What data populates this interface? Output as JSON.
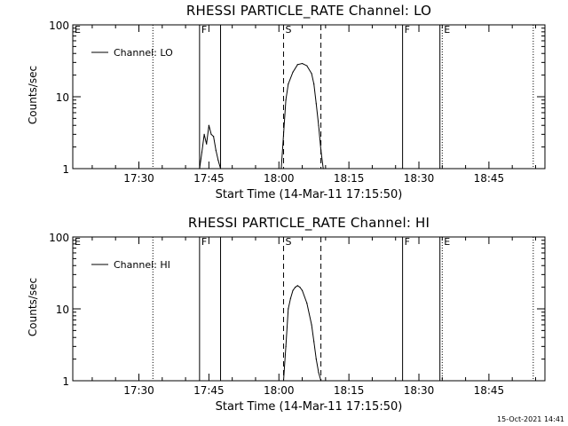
{
  "footer": {
    "timestamp": "15-Oct-2021 14:41"
  },
  "chart_data": [
    {
      "type": "line",
      "title": "RHESSI PARTICLE_RATE Channel: LO",
      "xlabel": "Start Time (14-Mar-11 17:15:50)",
      "ylabel": "Counts/sec",
      "yscale": "log",
      "ylim": [
        1,
        100
      ],
      "xlim": [
        "17:15:50",
        "18:57:00"
      ],
      "x_tick_labels": [
        "17:30",
        "17:45",
        "18:00",
        "18:15",
        "18:30",
        "18:45"
      ],
      "y_tick_labels": [
        "1",
        "10",
        "100"
      ],
      "legend": {
        "entries": [
          "Channel: LO"
        ],
        "placement": "top-left"
      },
      "series": [
        {
          "name": "Channel: LO",
          "x": [
            "17:43:00",
            "17:43:30",
            "17:44:00",
            "17:44:30",
            "17:45:00",
            "17:45:30",
            "17:46:00",
            "17:46:30",
            "17:47:00",
            "17:47:30",
            "18:00:30",
            "18:01:00",
            "18:01:30",
            "18:02:00",
            "18:03:00",
            "18:04:00",
            "18:05:00",
            "18:06:00",
            "18:07:00",
            "18:07:30",
            "18:08:00",
            "18:08:30",
            "18:09:00",
            "18:09:30"
          ],
          "y": [
            1,
            1.7,
            3,
            2.2,
            4,
            3,
            2.8,
            1.8,
            1.3,
            1,
            1,
            3,
            9,
            15,
            22,
            28,
            29,
            27,
            21,
            15,
            8,
            4,
            1.8,
            1
          ]
        }
      ],
      "event_markers": [
        {
          "label": "E",
          "time": "17:15:50",
          "style": "dotted"
        },
        {
          "label": "",
          "time": "17:33:00",
          "style": "dotted"
        },
        {
          "label": "F",
          "time": "17:43:00",
          "style": "solid"
        },
        {
          "label": "",
          "time": "17:47:30",
          "style": "solid"
        },
        {
          "label": "S",
          "time": "18:01:00",
          "style": "dashed"
        },
        {
          "label": "",
          "time": "18:09:00",
          "style": "dashed"
        },
        {
          "label": "F",
          "time": "18:26:30",
          "style": "solid"
        },
        {
          "label": "",
          "time": "18:34:30",
          "style": "solid"
        },
        {
          "label": "E",
          "time": "18:35:00",
          "style": "dotted"
        },
        {
          "label": "",
          "time": "18:54:30",
          "style": "dotted"
        }
      ]
    },
    {
      "type": "line",
      "title": "RHESSI PARTICLE_RATE Channel: HI",
      "xlabel": "Start Time (14-Mar-11 17:15:50)",
      "ylabel": "Counts/sec",
      "yscale": "log",
      "ylim": [
        1,
        100
      ],
      "xlim": [
        "17:15:50",
        "18:57:00"
      ],
      "x_tick_labels": [
        "17:30",
        "17:45",
        "18:00",
        "18:15",
        "18:30",
        "18:45"
      ],
      "y_tick_labels": [
        "1",
        "10",
        "100"
      ],
      "legend": {
        "entries": [
          "Channel: HI"
        ],
        "placement": "top-left"
      },
      "series": [
        {
          "name": "Channel: HI",
          "x": [
            "18:01:00",
            "18:01:30",
            "18:02:00",
            "18:02:30",
            "18:03:00",
            "18:03:30",
            "18:04:00",
            "18:04:30",
            "18:05:00",
            "18:06:00",
            "18:07:00",
            "18:07:30",
            "18:08:00",
            "18:08:30",
            "18:09:00"
          ],
          "y": [
            1,
            3,
            10,
            14,
            18,
            20,
            21,
            20,
            18,
            12,
            6,
            3.5,
            2,
            1.3,
            1
          ]
        }
      ],
      "event_markers": [
        {
          "label": "E",
          "time": "17:15:50",
          "style": "dotted"
        },
        {
          "label": "",
          "time": "17:33:00",
          "style": "dotted"
        },
        {
          "label": "F",
          "time": "17:43:00",
          "style": "solid"
        },
        {
          "label": "",
          "time": "17:47:30",
          "style": "solid"
        },
        {
          "label": "S",
          "time": "18:01:00",
          "style": "dashed"
        },
        {
          "label": "",
          "time": "18:09:00",
          "style": "dashed"
        },
        {
          "label": "F",
          "time": "18:26:30",
          "style": "solid"
        },
        {
          "label": "",
          "time": "18:34:30",
          "style": "solid"
        },
        {
          "label": "E",
          "time": "18:35:00",
          "style": "dotted"
        },
        {
          "label": "",
          "time": "18:54:30",
          "style": "dotted"
        }
      ]
    }
  ]
}
